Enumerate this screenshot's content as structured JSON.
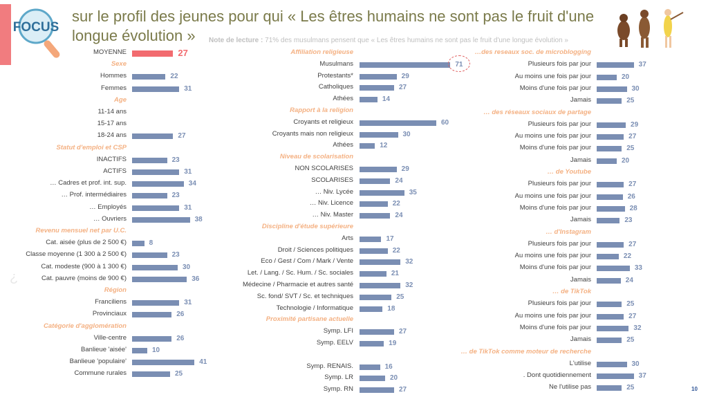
{
  "header": {
    "badge_text": "FOCUS",
    "title": "sur le profil des jeunes pour qui « Les êtres humains ne sont pas le fruit d'une longue évolution »",
    "note_prefix": "Note de lecture :",
    "note_text": "71% des musulmans pensent que « Les êtres humains ne sont pas le fruit d'une longue évolution »"
  },
  "page_number": "10",
  "colors": {
    "bar": "#7a8eb3",
    "average": "#f26b6f",
    "section": "#f4b183",
    "title": "#7a7a4a"
  },
  "chart_data": {
    "type": "bar",
    "orientation": "horizontal",
    "xlim": [
      0,
      100
    ],
    "columns": [
      {
        "rows": [
          {
            "kind": "average",
            "label": "MOYENNE",
            "value": 27
          },
          {
            "kind": "section",
            "label": "Sexe"
          },
          {
            "label": "Hommes",
            "value": 22
          },
          {
            "label": "Femmes",
            "value": 31
          },
          {
            "kind": "section",
            "label": "Age"
          },
          {
            "label": "11-14 ans",
            "value": null
          },
          {
            "label": "15-17 ans",
            "value": null
          },
          {
            "label": "18-24 ans",
            "value": 27
          },
          {
            "kind": "section",
            "label": "Statut d'emploi et CSP"
          },
          {
            "label": "INACTIFS",
            "value": 23
          },
          {
            "label": "ACTIFS",
            "value": 31
          },
          {
            "label": "… Cadres et prof. int. sup.",
            "value": 34
          },
          {
            "label": "… Prof. intermédiaires",
            "value": 23
          },
          {
            "label": "… Employés",
            "value": 31
          },
          {
            "label": "… Ouvriers",
            "value": 38
          },
          {
            "kind": "section",
            "label": "Revenu mensuel net par U.C."
          },
          {
            "label": "Cat. aisée (plus de 2 500 €)",
            "value": 8
          },
          {
            "label": "Classe moyenne (1 300 à 2 500 €)",
            "value": 23
          },
          {
            "label": "Cat. modeste (900 à 1 300 €)",
            "value": 30
          },
          {
            "label": "Cat. pauvre (moins de 900 €)",
            "value": 36
          },
          {
            "kind": "section",
            "label": "Région"
          },
          {
            "label": "Franciliens",
            "value": 31
          },
          {
            "label": "Provinciaux",
            "value": 26
          },
          {
            "kind": "section",
            "label": "Catégorie d'agglomération"
          },
          {
            "label": "Ville-centre",
            "value": 26
          },
          {
            "label": "Banlieue 'aisée'",
            "value": 10
          },
          {
            "label": "Banlieue 'populaire'",
            "value": 41
          },
          {
            "label": "Commune rurales",
            "value": 25
          }
        ]
      },
      {
        "rows": [
          {
            "kind": "section",
            "label": "Affiliation religieuse"
          },
          {
            "label": "Musulmans",
            "value": 71,
            "highlight": true
          },
          {
            "label": "Protestants*",
            "value": 29
          },
          {
            "label": "Catholiques",
            "value": 27
          },
          {
            "label": "Athées",
            "value": 14
          },
          {
            "kind": "section",
            "label": "Rapport à la religion"
          },
          {
            "label": "Croyants et religieux",
            "value": 60
          },
          {
            "label": "Croyants mais non religieux",
            "value": 30
          },
          {
            "label": "Athées",
            "value": 12
          },
          {
            "kind": "section",
            "label": "Niveau de scolarisation"
          },
          {
            "label": "NON SCOLARISES",
            "value": 29
          },
          {
            "label": "SCOLARISES",
            "value": 24
          },
          {
            "label": "… Niv. Lycée",
            "value": 35
          },
          {
            "label": "… Niv. Licence",
            "value": 22
          },
          {
            "label": "… Niv. Master",
            "value": 24
          },
          {
            "kind": "section",
            "label": "Discipline d'étude supérieure"
          },
          {
            "label": "Arts",
            "value": 17
          },
          {
            "label": "Droit / Sciences politiques",
            "value": 22
          },
          {
            "label": "Eco / Gest / Com / Mark / Vente",
            "value": 32
          },
          {
            "label": "Let. / Lang. / Sc. Hum. / Sc. sociales",
            "value": 21
          },
          {
            "label": "Médecine / Pharmacie et autres santé",
            "value": 32
          },
          {
            "label": "Sc. fond/ SVT / Sc. et techniques",
            "value": 25
          },
          {
            "label": "Technologie / Informatique",
            "value": 18
          },
          {
            "kind": "section",
            "label": "Proximité partisane actuelle"
          },
          {
            "label": "Symp. LFI",
            "value": 27
          },
          {
            "label": "Symp. EELV",
            "value": 19
          },
          {
            "kind": "gap"
          },
          {
            "label": "Symp. RENAIS.",
            "value": 16
          },
          {
            "label": "Symp. LR",
            "value": 20
          },
          {
            "label": "Symp. RN",
            "value": 27
          }
        ]
      },
      {
        "rows": [
          {
            "kind": "section",
            "label": "…des reseaux soc. de microblogging"
          },
          {
            "label": "Plusieurs fois par jour",
            "value": 37
          },
          {
            "label": "Au moins une fois par jour",
            "value": 20
          },
          {
            "label": "Moins d'une fois par jour",
            "value": 30
          },
          {
            "label": "Jamais",
            "value": 25
          },
          {
            "kind": "section",
            "label": "… des réseaux sociaux de partage"
          },
          {
            "label": "Plusieurs fois par jour",
            "value": 29
          },
          {
            "label": "Au moins une fois par jour",
            "value": 27
          },
          {
            "label": "Moins d'une fois par jour",
            "value": 25
          },
          {
            "label": "Jamais",
            "value": 20
          },
          {
            "kind": "section",
            "label": "… de Youtube"
          },
          {
            "label": "Plusieurs fois par jour",
            "value": 27
          },
          {
            "label": "Au moins une fois par jour",
            "value": 26
          },
          {
            "label": "Moins d'une fois par jour",
            "value": 28
          },
          {
            "label": "Jamais",
            "value": 23
          },
          {
            "kind": "section",
            "label": "… d'Instagram"
          },
          {
            "label": "Plusieurs fois par jour",
            "value": 27
          },
          {
            "label": "Au moins une fois par jour",
            "value": 22
          },
          {
            "label": "Moins d'une fois par jour",
            "value": 33
          },
          {
            "label": "Jamais",
            "value": 24
          },
          {
            "kind": "section",
            "label": "… de TikTok"
          },
          {
            "label": "Plusieurs fois par jour",
            "value": 25
          },
          {
            "label": "Au moins une fois par jour",
            "value": 27
          },
          {
            "label": "Moins d'une fois par jour",
            "value": 32
          },
          {
            "label": "Jamais",
            "value": 25
          },
          {
            "kind": "section",
            "label": "… de TikTok comme moteur de recherche"
          },
          {
            "label": "L'utilise",
            "value": 30
          },
          {
            "label": ". Dont quotidiennement",
            "value": 37
          },
          {
            "label": "Ne l'utilise pas",
            "value": 25
          }
        ]
      }
    ]
  }
}
